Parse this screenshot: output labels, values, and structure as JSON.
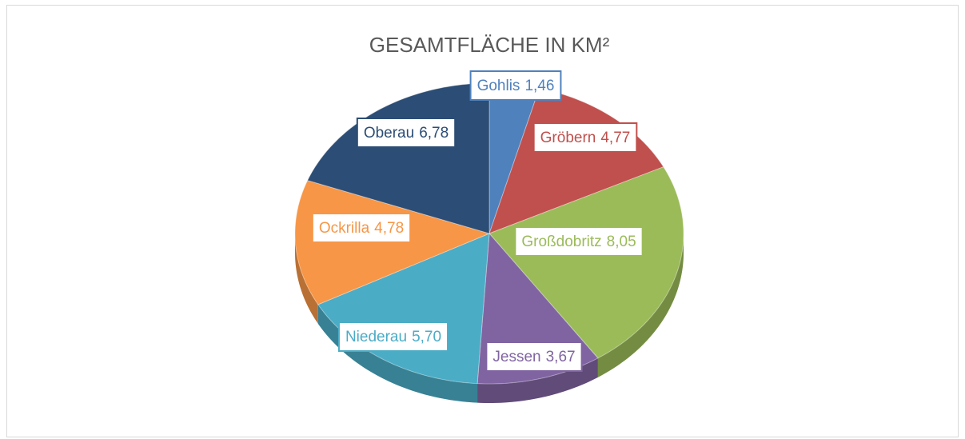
{
  "chart_data": {
    "type": "pie",
    "title": "GESAMTFLÄCHE IN KM²",
    "categories": [
      "Gohlis",
      "Gröbern",
      "Großdobritz",
      "Jessen",
      "Niederau",
      "Ockrilla",
      "Oberau"
    ],
    "values": [
      1.46,
      4.77,
      8.05,
      3.67,
      5.7,
      4.78,
      6.78
    ],
    "value_labels": [
      "1,46",
      "4,77",
      "8,05",
      "3,67",
      "5,70",
      "4,78",
      "6,78"
    ],
    "colors": [
      "#4f81bd",
      "#c0504d",
      "#9bbb59",
      "#8064a2",
      "#4bacc6",
      "#f79646",
      "#2c4d75"
    ]
  }
}
